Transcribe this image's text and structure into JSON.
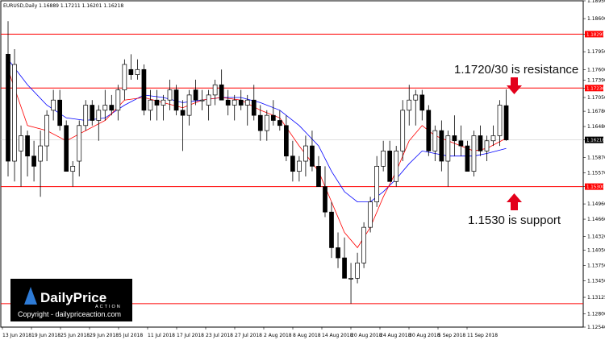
{
  "header": {
    "text": "EURUSD,Daily  1.16889 1.17211 1.16201 1.16218"
  },
  "annotations": {
    "resistance_text": "1.1720/30 is resistance",
    "support_text": "1.1530 is support"
  },
  "watermark": {
    "brand_a": "DailyPrice",
    "brand_b": "ACTION",
    "copyright": "Copyright - dailypriceaction.com"
  },
  "colors": {
    "level_line": "#ff0000",
    "ema_fast": "#ff0000",
    "ema_slow": "#0000ff",
    "arrow": "#e3001b",
    "bull_body": "#ffffff",
    "bear_body": "#000000"
  },
  "chart_data": {
    "type": "candlestick",
    "symbol": "EURUSD",
    "timeframe": "Daily",
    "ylim": [
      1.1254,
      1.1895
    ],
    "y_ticks": [
      "1.18950",
      "1.18600",
      "1.18295",
      "1.17950",
      "1.17600",
      "1.17390",
      "1.17236",
      "1.17050",
      "1.16780",
      "1.16480",
      "1.16218",
      "1.15870",
      "1.15570",
      "1.15300",
      "1.14960",
      "1.14660",
      "1.14320",
      "1.14050",
      "1.13750",
      "1.13450",
      "1.13125",
      "1.12800",
      "1.12540"
    ],
    "x_ticks": [
      "13 Jun 2018",
      "19 Jun 2018",
      "25 Jun 2018",
      "29 Jun 2018",
      "5 Jul 2018",
      "11 Jul 2018",
      "17 Jul 2018",
      "23 Jul 2018",
      "27 Jul 2018",
      "2 Aug 2018",
      "8 Aug 2018",
      "14 Aug 2018",
      "20 Aug 2018",
      "24 Aug 2018",
      "30 Aug 2018",
      "5 Sep 2018",
      "11 Sep 2018"
    ],
    "levels": [
      {
        "label": "1.18295",
        "value": 1.18295
      },
      {
        "label": "1.17236",
        "value": 1.17236
      },
      {
        "label": "1.15300",
        "value": 1.153
      },
      {
        "label": "1.13000",
        "value": 1.13
      }
    ],
    "last_price": {
      "label": "1.16218",
      "value": 1.16218
    },
    "candles": [
      [
        1.179,
        1.1855,
        1.155,
        1.158
      ],
      [
        1.158,
        1.18,
        1.154,
        1.177
      ],
      [
        1.16,
        1.165,
        1.153,
        1.163
      ],
      [
        1.163,
        1.164,
        1.155,
        1.159
      ],
      [
        1.159,
        1.162,
        1.154,
        1.157
      ],
      [
        1.158,
        1.164,
        1.151,
        1.161
      ],
      [
        1.161,
        1.168,
        1.158,
        1.167
      ],
      [
        1.168,
        1.172,
        1.166,
        1.17
      ],
      [
        1.17,
        1.172,
        1.164,
        1.165
      ],
      [
        1.165,
        1.166,
        1.156,
        1.156
      ],
      [
        1.156,
        1.158,
        1.153,
        1.157
      ],
      [
        1.158,
        1.166,
        1.155,
        1.165
      ],
      [
        1.165,
        1.17,
        1.164,
        1.169
      ],
      [
        1.169,
        1.17,
        1.165,
        1.166
      ],
      [
        1.166,
        1.169,
        1.162,
        1.168
      ],
      [
        1.168,
        1.172,
        1.166,
        1.169
      ],
      [
        1.169,
        1.171,
        1.167,
        1.168
      ],
      [
        1.168,
        1.173,
        1.166,
        1.172
      ],
      [
        1.172,
        1.178,
        1.17,
        1.177
      ],
      [
        1.176,
        1.179,
        1.174,
        1.175
      ],
      [
        1.175,
        1.178,
        1.174,
        1.176
      ],
      [
        1.176,
        1.177,
        1.167,
        1.168
      ],
      [
        1.168,
        1.172,
        1.166,
        1.17
      ],
      [
        1.17,
        1.172,
        1.166,
        1.169
      ],
      [
        1.169,
        1.171,
        1.166,
        1.17
      ],
      [
        1.17,
        1.174,
        1.168,
        1.172
      ],
      [
        1.172,
        1.173,
        1.167,
        1.168
      ],
      [
        1.168,
        1.17,
        1.16,
        1.167
      ],
      [
        1.167,
        1.172,
        1.165,
        1.171
      ],
      [
        1.172,
        1.174,
        1.169,
        1.17
      ],
      [
        1.17,
        1.172,
        1.168,
        1.17
      ],
      [
        1.169,
        1.172,
        1.166,
        1.171
      ],
      [
        1.171,
        1.174,
        1.169,
        1.173
      ],
      [
        1.173,
        1.176,
        1.17,
        1.17
      ],
      [
        1.17,
        1.172,
        1.167,
        1.169
      ],
      [
        1.169,
        1.171,
        1.166,
        1.17
      ],
      [
        1.17,
        1.172,
        1.168,
        1.169
      ],
      [
        1.169,
        1.171,
        1.165,
        1.17
      ],
      [
        1.17,
        1.173,
        1.166,
        1.167
      ],
      [
        1.167,
        1.169,
        1.162,
        1.164
      ],
      [
        1.164,
        1.168,
        1.162,
        1.167
      ],
      [
        1.167,
        1.17,
        1.165,
        1.166
      ],
      [
        1.166,
        1.168,
        1.164,
        1.165
      ],
      [
        1.165,
        1.167,
        1.158,
        1.159
      ],
      [
        1.159,
        1.162,
        1.154,
        1.156
      ],
      [
        1.156,
        1.159,
        1.154,
        1.158
      ],
      [
        1.158,
        1.163,
        1.155,
        1.161
      ],
      [
        1.161,
        1.164,
        1.156,
        1.157
      ],
      [
        1.157,
        1.159,
        1.153,
        1.153
      ],
      [
        1.153,
        1.157,
        1.147,
        1.148
      ],
      [
        1.148,
        1.15,
        1.139,
        1.141
      ],
      [
        1.141,
        1.144,
        1.137,
        1.139
      ],
      [
        1.139,
        1.143,
        1.135,
        1.135
      ],
      [
        1.135,
        1.138,
        1.13,
        1.135
      ],
      [
        1.135,
        1.14,
        1.134,
        1.138
      ],
      [
        1.138,
        1.146,
        1.137,
        1.145
      ],
      [
        1.145,
        1.151,
        1.144,
        1.15
      ],
      [
        1.15,
        1.159,
        1.149,
        1.157
      ],
      [
        1.157,
        1.162,
        1.156,
        1.16
      ],
      [
        1.16,
        1.162,
        1.154,
        1.154
      ],
      [
        1.154,
        1.161,
        1.153,
        1.16
      ],
      [
        1.16,
        1.17,
        1.158,
        1.168
      ],
      [
        1.168,
        1.173,
        1.165,
        1.17
      ],
      [
        1.17,
        1.172,
        1.165,
        1.171
      ],
      [
        1.171,
        1.172,
        1.166,
        1.168
      ],
      [
        1.168,
        1.169,
        1.159,
        1.16
      ],
      [
        1.16,
        1.165,
        1.158,
        1.164
      ],
      [
        1.164,
        1.166,
        1.156,
        1.158
      ],
      [
        1.158,
        1.164,
        1.153,
        1.163
      ],
      [
        1.163,
        1.167,
        1.159,
        1.162
      ],
      [
        1.162,
        1.165,
        1.159,
        1.161
      ],
      [
        1.161,
        1.162,
        1.156,
        1.156
      ],
      [
        1.156,
        1.164,
        1.155,
        1.163
      ],
      [
        1.163,
        1.165,
        1.159,
        1.16
      ],
      [
        1.16,
        1.163,
        1.158,
        1.162
      ],
      [
        1.162,
        1.165,
        1.161,
        1.163
      ],
      [
        1.163,
        1.17,
        1.161,
        1.169
      ],
      [
        1.1689,
        1.1721,
        1.162,
        1.16218
      ]
    ],
    "ema_fast": [
      [
        0,
        1.176
      ],
      [
        3,
        1.165
      ],
      [
        6,
        1.164
      ],
      [
        9,
        1.162
      ],
      [
        12,
        1.164
      ],
      [
        15,
        1.166
      ],
      [
        18,
        1.17
      ],
      [
        21,
        1.1705
      ],
      [
        24,
        1.1695
      ],
      [
        27,
        1.1685
      ],
      [
        30,
        1.17
      ],
      [
        33,
        1.1705
      ],
      [
        36,
        1.17
      ],
      [
        39,
        1.168
      ],
      [
        42,
        1.1665
      ],
      [
        45,
        1.161
      ],
      [
        48,
        1.156
      ],
      [
        50,
        1.15
      ],
      [
        52,
        1.144
      ],
      [
        54,
        1.141
      ],
      [
        56,
        1.145
      ],
      [
        58,
        1.151
      ],
      [
        60,
        1.156
      ],
      [
        62,
        1.162
      ],
      [
        64,
        1.165
      ],
      [
        66,
        1.163
      ],
      [
        68,
        1.162
      ],
      [
        70,
        1.161
      ],
      [
        72,
        1.16
      ],
      [
        74,
        1.1605
      ],
      [
        77,
        1.1625
      ]
    ],
    "ema_slow": [
      [
        0,
        1.178
      ],
      [
        3,
        1.173
      ],
      [
        6,
        1.169
      ],
      [
        9,
        1.1665
      ],
      [
        12,
        1.166
      ],
      [
        15,
        1.1665
      ],
      [
        18,
        1.169
      ],
      [
        21,
        1.171
      ],
      [
        24,
        1.1705
      ],
      [
        27,
        1.1695
      ],
      [
        30,
        1.17
      ],
      [
        33,
        1.1705
      ],
      [
        36,
        1.1705
      ],
      [
        39,
        1.1695
      ],
      [
        42,
        1.168
      ],
      [
        45,
        1.165
      ],
      [
        48,
        1.161
      ],
      [
        50,
        1.156
      ],
      [
        52,
        1.152
      ],
      [
        54,
        1.15
      ],
      [
        56,
        1.15
      ],
      [
        58,
        1.152
      ],
      [
        60,
        1.1545
      ],
      [
        62,
        1.1575
      ],
      [
        64,
        1.16
      ],
      [
        66,
        1.1595
      ],
      [
        68,
        1.159
      ],
      [
        70,
        1.159
      ],
      [
        72,
        1.159
      ],
      [
        74,
        1.1595
      ],
      [
        77,
        1.1605
      ]
    ]
  }
}
